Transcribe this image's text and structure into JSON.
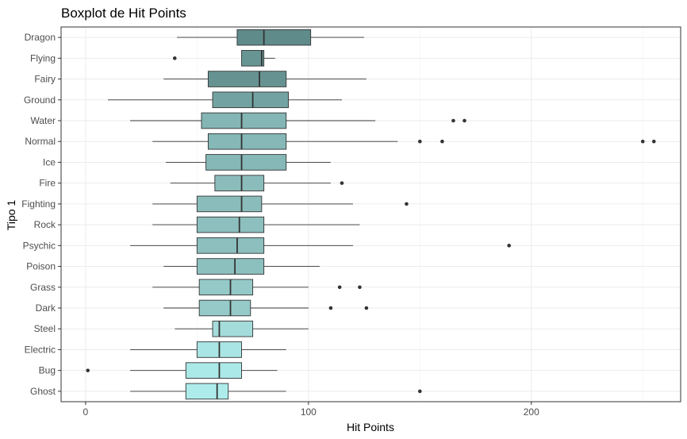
{
  "chart_data": {
    "type": "boxplot",
    "orientation": "horizontal",
    "title": "Boxplot de Hit Points",
    "xlabel": "Hit Points",
    "ylabel": "Tipo 1",
    "xlim": [
      -11,
      267
    ],
    "xticks": [
      0,
      100,
      200
    ],
    "grid": true,
    "legend": "none",
    "categories": [
      "Dragon",
      "Flying",
      "Fairy",
      "Ground",
      "Water",
      "Normal",
      "Ice",
      "Fire",
      "Fighting",
      "Rock",
      "Psychic",
      "Poison",
      "Grass",
      "Dark",
      "Steel",
      "Electric",
      "Bug",
      "Ghost"
    ],
    "boxes": [
      {
        "min": 41,
        "q1": 68,
        "median": 80,
        "q3": 101,
        "max": 125,
        "outliers": [],
        "color": "#5f8b8a"
      },
      {
        "min": 70,
        "q1": 70,
        "median": 79,
        "q3": 80,
        "max": 85,
        "outliers": [
          40
        ],
        "color": "#679594"
      },
      {
        "min": 35,
        "q1": 55,
        "median": 78,
        "q3": 90,
        "max": 126,
        "outliers": [],
        "color": "#669392"
      },
      {
        "min": 10,
        "q1": 57,
        "median": 75,
        "q3": 91,
        "max": 115,
        "outliers": [],
        "color": "#72a3a2"
      },
      {
        "min": 20,
        "q1": 52,
        "median": 70,
        "q3": 90,
        "max": 130,
        "outliers": [
          165,
          170
        ],
        "color": "#84b6b5"
      },
      {
        "min": 30,
        "q1": 55,
        "median": 70,
        "q3": 90,
        "max": 140,
        "outliers": [
          150,
          160,
          250,
          255
        ],
        "color": "#85b8b7"
      },
      {
        "min": 36,
        "q1": 54,
        "median": 70,
        "q3": 90,
        "max": 110,
        "outliers": [],
        "color": "#85b8b7"
      },
      {
        "min": 38,
        "q1": 58,
        "median": 70,
        "q3": 80,
        "max": 110,
        "outliers": [
          115
        ],
        "color": "#8abcbb"
      },
      {
        "min": 30,
        "q1": 50,
        "median": 70,
        "q3": 79,
        "max": 120,
        "outliers": [
          144
        ],
        "color": "#8abcbb"
      },
      {
        "min": 30,
        "q1": 50,
        "median": 69,
        "q3": 80,
        "max": 123,
        "outliers": [],
        "color": "#8cbfbe"
      },
      {
        "min": 20,
        "q1": 50,
        "median": 68,
        "q3": 80,
        "max": 120,
        "outliers": [
          190
        ],
        "color": "#8cbfbe"
      },
      {
        "min": 35,
        "q1": 50,
        "median": 67,
        "q3": 80,
        "max": 105,
        "outliers": [],
        "color": "#8cc0bf"
      },
      {
        "min": 30,
        "q1": 51,
        "median": 65,
        "q3": 75,
        "max": 100,
        "outliers": [
          114,
          123
        ],
        "color": "#94c9c8"
      },
      {
        "min": 35,
        "q1": 51,
        "median": 65,
        "q3": 74,
        "max": 100,
        "outliers": [
          110,
          126
        ],
        "color": "#95cac9"
      },
      {
        "min": 40,
        "q1": 57,
        "median": 60,
        "q3": 75,
        "max": 100,
        "outliers": [],
        "color": "#a4dcdb"
      },
      {
        "min": 20,
        "q1": 50,
        "median": 60,
        "q3": 70,
        "max": 90,
        "outliers": [],
        "color": "#a9e5e4"
      },
      {
        "min": 20,
        "q1": 45,
        "median": 60,
        "q3": 70,
        "max": 86,
        "outliers": [
          1
        ],
        "color": "#abe9e8"
      },
      {
        "min": 20,
        "q1": 45,
        "median": 59,
        "q3": 64,
        "max": 90,
        "outliers": [
          150
        ],
        "color": "#aeeceb"
      }
    ]
  }
}
